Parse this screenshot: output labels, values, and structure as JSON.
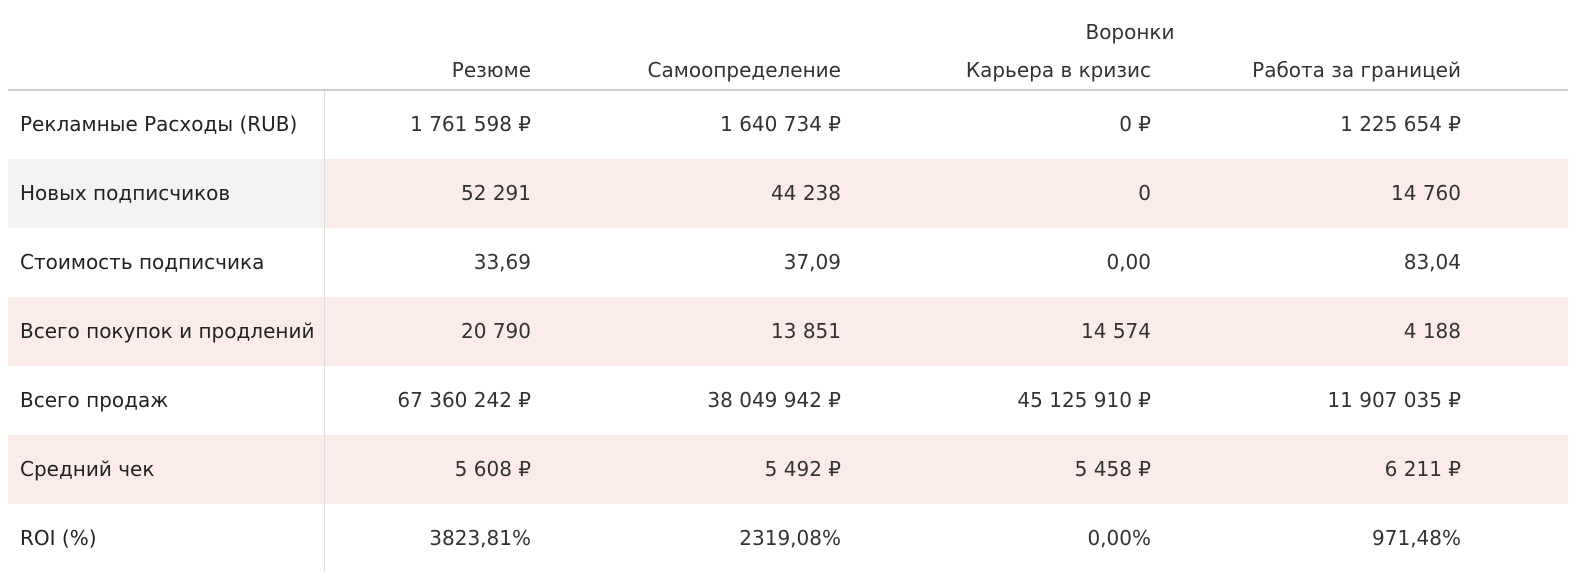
{
  "table": {
    "group_header": "Воронки",
    "columns": [
      "Резюме",
      "Самоопределение",
      "Карьера в кризис",
      "Работа за границей"
    ],
    "rows": [
      {
        "label": "Рекламные Расходы (RUB)",
        "cells": [
          "1 761 598 ₽",
          "1 640 734 ₽",
          "0 ₽",
          "1 225 654 ₽"
        ]
      },
      {
        "label": "Новых подписчиков",
        "cells": [
          "52 291",
          "44 238",
          "0",
          "14 760"
        ]
      },
      {
        "label": "Стоимость подписчика",
        "cells": [
          "33,69",
          "37,09",
          "0,00",
          "83,04"
        ]
      },
      {
        "label": "Всего покупок и продлений",
        "cells": [
          "20 790",
          "13 851",
          "14 574",
          "4 188"
        ]
      },
      {
        "label": "Всего продаж",
        "cells": [
          "67 360 242 ₽",
          "38 049 942 ₽",
          "45 125 910 ₽",
          "11 907 035 ₽"
        ]
      },
      {
        "label": "Средний чек",
        "cells": [
          "5 608 ₽",
          "5 492 ₽",
          "5 458 ₽",
          "6 211 ₽"
        ]
      },
      {
        "label": "ROI (%)",
        "cells": [
          "3823,81%",
          "2319,08%",
          "0,00%",
          "971,48%"
        ]
      }
    ]
  }
}
